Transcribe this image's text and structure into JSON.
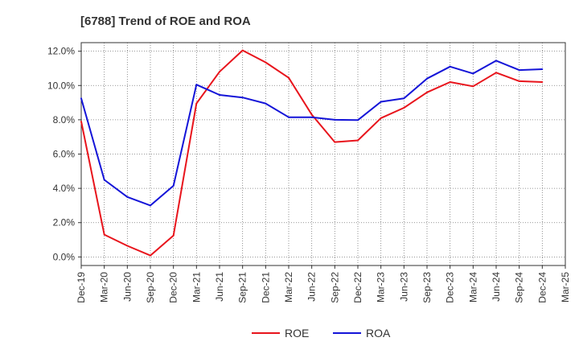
{
  "chart_data": {
    "type": "line",
    "title": "[6788]  Trend of ROE and ROA",
    "xlabel": "",
    "ylabel": "",
    "x": [
      "Dec-19",
      "Mar-20",
      "Jun-20",
      "Sep-20",
      "Dec-20",
      "Mar-21",
      "Jun-21",
      "Sep-21",
      "Dec-21",
      "Mar-22",
      "Jun-22",
      "Sep-22",
      "Dec-22",
      "Mar-23",
      "Jun-23",
      "Sep-23",
      "Dec-23",
      "Mar-24",
      "Jun-24",
      "Sep-24",
      "Dec-24",
      "Mar-25"
    ],
    "ylim": [
      -0.5,
      12.5
    ],
    "yticks": [
      0,
      2,
      4,
      6,
      8,
      10,
      12
    ],
    "ytick_labels": [
      "0.0%",
      "2.0%",
      "4.0%",
      "6.0%",
      "8.0%",
      "10.0%",
      "12.0%"
    ],
    "grid": true,
    "legend_position": "bottom-center",
    "series": [
      {
        "name": "ROE",
        "color": "#e8141c",
        "values": [
          7.9,
          1.3,
          0.65,
          0.08,
          1.25,
          8.95,
          10.8,
          12.05,
          11.35,
          10.45,
          8.3,
          6.7,
          6.8,
          8.1,
          8.7,
          9.6,
          10.2,
          9.95,
          10.75,
          10.25,
          10.2,
          null
        ]
      },
      {
        "name": "ROA",
        "color": "#1414d8",
        "values": [
          9.25,
          4.5,
          3.5,
          3.0,
          4.15,
          10.05,
          9.45,
          9.3,
          8.95,
          8.15,
          8.15,
          8.0,
          7.98,
          9.05,
          9.25,
          10.4,
          11.1,
          10.7,
          11.45,
          10.9,
          10.95,
          null
        ]
      }
    ]
  }
}
